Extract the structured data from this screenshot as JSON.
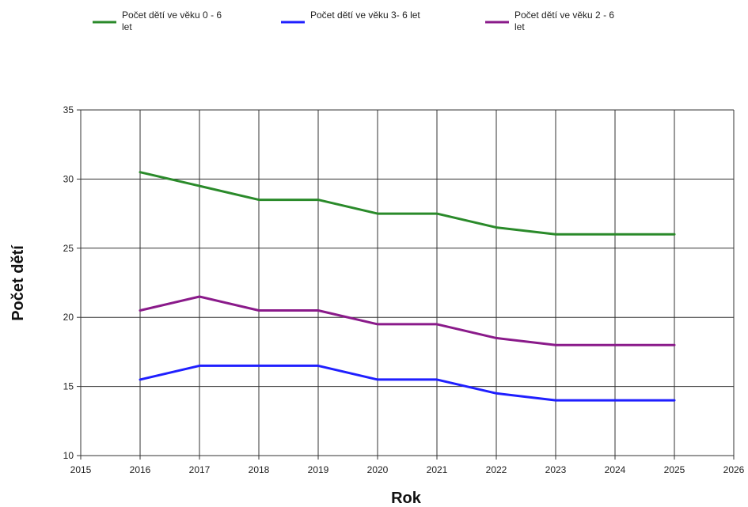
{
  "chart_data": {
    "type": "line",
    "xlabel": "Rok",
    "ylabel": "Počet dětí",
    "xlim": [
      2015,
      2026
    ],
    "ylim": [
      10,
      35
    ],
    "x_ticks": [
      "2015",
      "2016",
      "2017",
      "2018",
      "2019",
      "2020",
      "2021",
      "2022",
      "2023",
      "2024",
      "2025",
      "2026"
    ],
    "y_ticks": [
      "10",
      "15",
      "20",
      "25",
      "30",
      "35"
    ],
    "grid": true,
    "legend_position": "top",
    "x": [
      2016,
      2017,
      2018,
      2019,
      2020,
      2021,
      2022,
      2023,
      2024,
      2025
    ],
    "series": [
      {
        "name": "Počet dětí ve věku 0 - 6 let",
        "legend_lines": [
          "Počet dětí ve věku 0 - 6",
          "let"
        ],
        "color": "#2a8a2a",
        "values": [
          30.5,
          29.5,
          28.5,
          28.5,
          27.5,
          27.5,
          26.5,
          26,
          26,
          26
        ]
      },
      {
        "name": "Počet dětí ve věku 3- 6 let",
        "legend_lines": [
          "Počet dětí ve věku 3- 6 let"
        ],
        "color": "#1f1fff",
        "values": [
          15.5,
          16.5,
          16.5,
          16.5,
          15.5,
          15.5,
          14.5,
          14,
          14,
          14
        ]
      },
      {
        "name": "Počet dětí ve věku 2 - 6 let",
        "legend_lines": [
          "Počet dětí ve věku 2 - 6",
          "let"
        ],
        "color": "#8a1a8a",
        "values": [
          20.5,
          21.5,
          20.5,
          20.5,
          19.5,
          19.5,
          18.5,
          18,
          18,
          18
        ]
      }
    ]
  }
}
